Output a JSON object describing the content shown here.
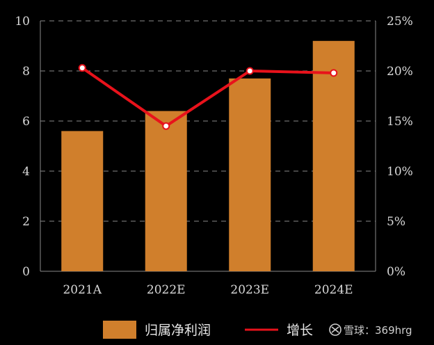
{
  "chart_data": {
    "type": "bar",
    "categories": [
      "2021A",
      "2022E",
      "2023E",
      "2024E"
    ],
    "series": [
      {
        "name": "归属净利润",
        "type": "bar",
        "axis": "left",
        "values": [
          5.6,
          6.4,
          7.7,
          9.2
        ],
        "color": "#d07f2c"
      },
      {
        "name": "增长",
        "type": "line",
        "axis": "right",
        "values": [
          20.3,
          14.5,
          20.0,
          19.8
        ],
        "color": "#e8121b"
      }
    ],
    "y_left": {
      "ylim": [
        0,
        10
      ],
      "ticks": [
        "0",
        "2",
        "4",
        "6",
        "8",
        "10"
      ]
    },
    "y_right": {
      "ylim": [
        0,
        25
      ],
      "ticks": [
        "0%",
        "5%",
        "10%",
        "15%",
        "20%",
        "25%"
      ]
    },
    "grid": true,
    "legend_position": "bottom",
    "title": "",
    "xlabel": "",
    "ylabel": ""
  },
  "watermark": {
    "icon": "snowball-logo-icon",
    "text": "雪球：369hrg"
  }
}
